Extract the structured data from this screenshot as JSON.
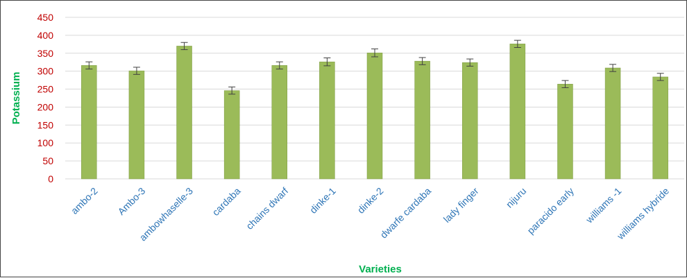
{
  "chart_data": {
    "type": "bar",
    "xlabel": "Varieties",
    "ylabel": "Potassium",
    "ylim": [
      0,
      450
    ],
    "yticks": [
      0,
      50,
      100,
      150,
      200,
      250,
      300,
      350,
      400,
      450
    ],
    "grid": true,
    "legend": "none",
    "colors": {
      "bar": "#9bbb59",
      "bar_edge": "#7f9b45",
      "ytick_labels": "#c00000",
      "xtick_labels": "#2e75b6",
      "axis_titles": "#00b050",
      "grid": "#d9d9d9",
      "error_bar": "#404040"
    },
    "categories": [
      "ambo-2",
      "Ambo-3",
      "ambowhaselle-3",
      "cardaba",
      "chains dwarf",
      "dinke-1",
      "dinke-2",
      "dwarfe cardaba",
      "lady finger",
      "nijuru",
      "paracido early",
      "williams -1",
      "williams hybride"
    ],
    "values": [
      316,
      301,
      370,
      246,
      316,
      326,
      351,
      328,
      324,
      376,
      264,
      309,
      284
    ],
    "errors": [
      10,
      10,
      10,
      10,
      10,
      11,
      11,
      10,
      10,
      10,
      10,
      10,
      10
    ]
  }
}
